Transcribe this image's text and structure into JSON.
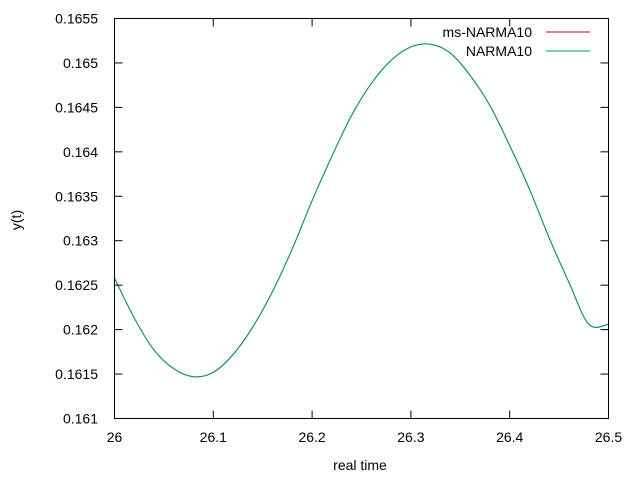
{
  "chart_data": {
    "type": "line",
    "title": "",
    "xlabel": "real time",
    "ylabel": "y(t)",
    "xlim": [
      26,
      26.5
    ],
    "ylim": [
      0.161,
      0.1655
    ],
    "xticks": [
      "26",
      "26.1",
      "26.2",
      "26.3",
      "26.4",
      "26.5"
    ],
    "yticks": [
      "0.161",
      "0.1615",
      "0.162",
      "0.1625",
      "0.163",
      "0.1635",
      "0.164",
      "0.1645",
      "0.165",
      "0.1655"
    ],
    "grid": false,
    "legend_position": "top-right",
    "series": [
      {
        "name": "ms-NARMA10",
        "color": "#a0007f",
        "x": [
          26.0,
          26.02,
          26.04,
          26.06,
          26.08,
          26.1,
          26.12,
          26.14,
          26.16,
          26.18,
          26.2,
          26.22,
          26.24,
          26.26,
          26.28,
          26.3,
          26.32,
          26.34,
          26.36,
          26.38,
          26.4,
          26.42,
          26.44,
          26.46,
          26.48,
          26.5
        ],
        "y": [
          0.16258,
          0.16213,
          0.16177,
          0.16156,
          0.16147,
          0.16152,
          0.16172,
          0.16203,
          0.16243,
          0.16291,
          0.16345,
          0.16395,
          0.16441,
          0.16477,
          0.16503,
          0.16518,
          0.16521,
          0.16511,
          0.16486,
          0.16452,
          0.16407,
          0.16358,
          0.16303,
          0.16253,
          0.16206,
          0.16206
        ]
      },
      {
        "name": "NARMA10",
        "color": "#009e73",
        "x": [
          26.0,
          26.02,
          26.04,
          26.06,
          26.08,
          26.1,
          26.12,
          26.14,
          26.16,
          26.18,
          26.2,
          26.22,
          26.24,
          26.26,
          26.28,
          26.3,
          26.32,
          26.34,
          26.36,
          26.38,
          26.4,
          26.42,
          26.44,
          26.46,
          26.48,
          26.5
        ],
        "y": [
          0.16258,
          0.16213,
          0.16177,
          0.16156,
          0.16147,
          0.16152,
          0.16172,
          0.16203,
          0.16243,
          0.16291,
          0.16345,
          0.16395,
          0.16441,
          0.16477,
          0.16503,
          0.16518,
          0.16521,
          0.16511,
          0.16486,
          0.16452,
          0.16407,
          0.16358,
          0.16303,
          0.16253,
          0.16206,
          0.16206
        ]
      }
    ]
  }
}
